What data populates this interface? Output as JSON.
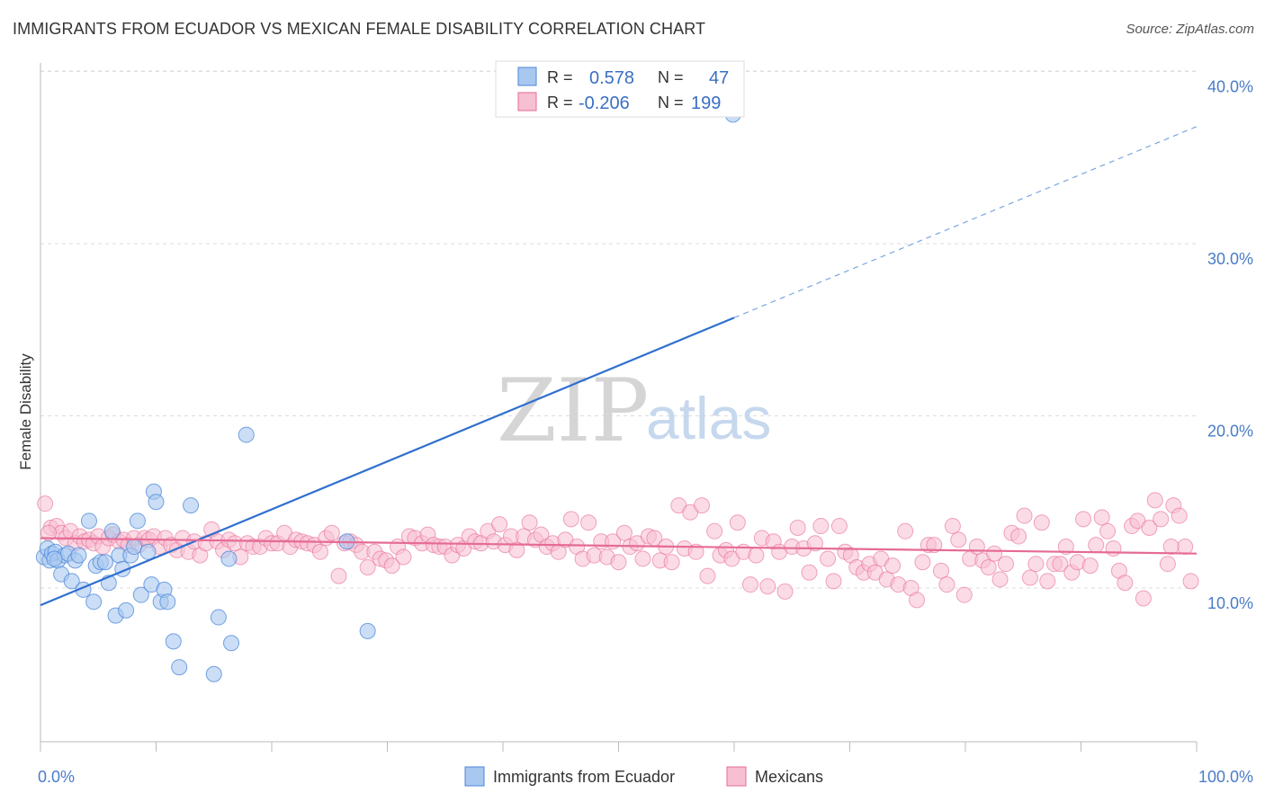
{
  "header": {
    "title": "IMMIGRANTS FROM ECUADOR VS MEXICAN FEMALE DISABILITY CORRELATION CHART",
    "source": "Source: ZipAtlas.com"
  },
  "watermark": {
    "zip": "ZIP",
    "atlas": "atlas"
  },
  "colors": {
    "blue": "#4a86d8",
    "blue_fill": "#a9c8f0",
    "pink": "#e86a95",
    "pink_fill": "#f7c0d2",
    "tick_text": "#4a7cc7"
  },
  "legend": {
    "rows": [
      {
        "r_label": "R =",
        "r_value": "0.578",
        "n_label": "N =",
        "n_value": "47"
      },
      {
        "r_label": "R =",
        "r_value": "-0.206",
        "n_label": "N =",
        "n_value": "199"
      }
    ]
  },
  "chart_data": {
    "type": "scatter",
    "title": "IMMIGRANTS FROM ECUADOR VS MEXICAN FEMALE DISABILITY CORRELATION CHART",
    "xlabel": "",
    "ylabel": "Female Disability",
    "x_tick_labels": [
      "0.0%",
      "100.0%"
    ],
    "y_tick_labels": [
      "10.0%",
      "20.0%",
      "30.0%",
      "40.0%"
    ],
    "xlim": [
      0,
      100
    ],
    "ylim": [
      0,
      42
    ],
    "grid": true,
    "legend_position": "bottom",
    "series": [
      {
        "name": "Immigrants from Ecuador",
        "color": "#4a86d8",
        "r": 0.578,
        "n": 47,
        "trend": {
          "x0": 0,
          "y0": 9.0,
          "x1": 60,
          "y1": 25.7,
          "dashed_to_x": 100,
          "dashed_to_y": 36.8
        },
        "points": [
          [
            0.3,
            11.8
          ],
          [
            0.6,
            12.3
          ],
          [
            0.8,
            11.6
          ],
          [
            1.0,
            12.0
          ],
          [
            1.3,
            12.1
          ],
          [
            1.5,
            11.6
          ],
          [
            1.8,
            10.8
          ],
          [
            2.1,
            11.9
          ],
          [
            2.4,
            12.0
          ],
          [
            2.7,
            10.4
          ],
          [
            3.0,
            11.6
          ],
          [
            3.3,
            11.9
          ],
          [
            3.7,
            9.9
          ],
          [
            4.2,
            13.9
          ],
          [
            4.6,
            9.2
          ],
          [
            4.8,
            11.3
          ],
          [
            5.2,
            11.5
          ],
          [
            5.6,
            11.5
          ],
          [
            5.9,
            10.3
          ],
          [
            6.2,
            13.3
          ],
          [
            6.5,
            8.4
          ],
          [
            6.8,
            11.9
          ],
          [
            7.1,
            11.1
          ],
          [
            7.4,
            8.7
          ],
          [
            7.8,
            11.9
          ],
          [
            8.1,
            12.4
          ],
          [
            8.4,
            13.9
          ],
          [
            8.7,
            9.6
          ],
          [
            9.3,
            12.1
          ],
          [
            9.6,
            10.2
          ],
          [
            9.8,
            15.6
          ],
          [
            10.0,
            15.0
          ],
          [
            10.4,
            9.2
          ],
          [
            10.7,
            9.9
          ],
          [
            11.0,
            9.2
          ],
          [
            11.5,
            6.9
          ],
          [
            12.0,
            5.4
          ],
          [
            13.0,
            14.8
          ],
          [
            15.0,
            5.0
          ],
          [
            15.4,
            8.3
          ],
          [
            16.3,
            11.7
          ],
          [
            16.5,
            6.8
          ],
          [
            17.8,
            18.9
          ],
          [
            26.5,
            12.7
          ],
          [
            28.3,
            7.5
          ],
          [
            59.9,
            37.5
          ],
          [
            1.2,
            11.7
          ]
        ]
      },
      {
        "name": "Mexicans",
        "color": "#e86a95",
        "r": -0.206,
        "n": 199,
        "trend": {
          "x0": 0,
          "y0": 12.9,
          "x1": 100,
          "y1": 12.0
        },
        "points": [
          [
            0.4,
            14.9
          ],
          [
            0.9,
            13.5
          ],
          [
            1.4,
            13.6
          ],
          [
            1.8,
            13.2
          ],
          [
            2.2,
            12.9
          ],
          [
            2.6,
            13.3
          ],
          [
            3.0,
            12.6
          ],
          [
            3.4,
            13.0
          ],
          [
            3.8,
            12.7
          ],
          [
            4.2,
            12.8
          ],
          [
            4.6,
            12.6
          ],
          [
            5.0,
            13.0
          ],
          [
            5.4,
            12.4
          ],
          [
            5.9,
            12.9
          ],
          [
            6.3,
            13.1
          ],
          [
            6.8,
            12.7
          ],
          [
            7.2,
            12.8
          ],
          [
            7.6,
            12.5
          ],
          [
            8.1,
            12.9
          ],
          [
            8.5,
            12.5
          ],
          [
            9.0,
            12.9
          ],
          [
            9.4,
            12.8
          ],
          [
            9.8,
            13.0
          ],
          [
            10.3,
            12.4
          ],
          [
            10.8,
            12.9
          ],
          [
            11.3,
            12.5
          ],
          [
            11.8,
            12.2
          ],
          [
            12.3,
            12.9
          ],
          [
            12.8,
            12.1
          ],
          [
            13.3,
            12.7
          ],
          [
            13.8,
            11.9
          ],
          [
            14.3,
            12.6
          ],
          [
            14.8,
            13.4
          ],
          [
            15.3,
            12.7
          ],
          [
            15.8,
            12.2
          ],
          [
            16.3,
            12.8
          ],
          [
            16.8,
            12.6
          ],
          [
            17.3,
            11.8
          ],
          [
            17.9,
            12.6
          ],
          [
            18.4,
            12.4
          ],
          [
            19.0,
            12.4
          ],
          [
            19.5,
            12.9
          ],
          [
            20.0,
            12.6
          ],
          [
            20.5,
            12.6
          ],
          [
            21.1,
            13.2
          ],
          [
            21.6,
            12.4
          ],
          [
            22.1,
            12.8
          ],
          [
            22.6,
            12.7
          ],
          [
            23.1,
            12.6
          ],
          [
            23.7,
            12.5
          ],
          [
            24.2,
            12.1
          ],
          [
            24.7,
            12.9
          ],
          [
            25.2,
            13.2
          ],
          [
            25.8,
            10.7
          ],
          [
            26.3,
            12.6
          ],
          [
            26.8,
            12.7
          ],
          [
            27.3,
            12.5
          ],
          [
            27.8,
            12.1
          ],
          [
            28.3,
            11.2
          ],
          [
            28.9,
            12.1
          ],
          [
            29.4,
            11.7
          ],
          [
            29.9,
            11.6
          ],
          [
            30.4,
            11.3
          ],
          [
            30.9,
            12.4
          ],
          [
            31.4,
            11.8
          ],
          [
            31.9,
            13.0
          ],
          [
            32.4,
            12.9
          ],
          [
            33.0,
            12.6
          ],
          [
            33.5,
            13.1
          ],
          [
            34.0,
            12.5
          ],
          [
            34.5,
            12.4
          ],
          [
            35.0,
            12.4
          ],
          [
            35.6,
            11.9
          ],
          [
            36.1,
            12.5
          ],
          [
            36.6,
            12.3
          ],
          [
            37.1,
            13.0
          ],
          [
            37.6,
            12.7
          ],
          [
            38.1,
            12.6
          ],
          [
            38.7,
            13.3
          ],
          [
            39.2,
            12.7
          ],
          [
            39.7,
            13.7
          ],
          [
            40.2,
            12.5
          ],
          [
            40.7,
            13.0
          ],
          [
            41.2,
            12.2
          ],
          [
            41.8,
            13.0
          ],
          [
            42.3,
            13.8
          ],
          [
            42.8,
            12.8
          ],
          [
            43.3,
            13.1
          ],
          [
            43.8,
            12.4
          ],
          [
            44.3,
            12.6
          ],
          [
            44.8,
            12.1
          ],
          [
            45.4,
            12.8
          ],
          [
            45.9,
            14.0
          ],
          [
            46.4,
            12.4
          ],
          [
            46.9,
            11.7
          ],
          [
            47.4,
            13.8
          ],
          [
            47.9,
            11.9
          ],
          [
            48.5,
            12.7
          ],
          [
            49.0,
            11.8
          ],
          [
            49.5,
            12.7
          ],
          [
            50.0,
            11.5
          ],
          [
            50.5,
            13.2
          ],
          [
            51.0,
            12.4
          ],
          [
            51.6,
            12.6
          ],
          [
            52.1,
            11.7
          ],
          [
            52.6,
            13.0
          ],
          [
            53.1,
            12.9
          ],
          [
            53.6,
            11.6
          ],
          [
            54.1,
            12.4
          ],
          [
            54.6,
            11.5
          ],
          [
            55.2,
            14.8
          ],
          [
            55.7,
            12.3
          ],
          [
            56.2,
            14.4
          ],
          [
            56.7,
            12.1
          ],
          [
            57.2,
            14.8
          ],
          [
            57.7,
            10.7
          ],
          [
            58.3,
            13.3
          ],
          [
            58.8,
            11.9
          ],
          [
            59.3,
            12.2
          ],
          [
            59.8,
            11.7
          ],
          [
            60.3,
            13.8
          ],
          [
            60.8,
            12.1
          ],
          [
            61.4,
            10.2
          ],
          [
            61.9,
            11.9
          ],
          [
            62.4,
            12.9
          ],
          [
            62.9,
            10.1
          ],
          [
            63.4,
            12.7
          ],
          [
            63.9,
            12.1
          ],
          [
            64.4,
            9.8
          ],
          [
            65.0,
            12.4
          ],
          [
            65.5,
            13.5
          ],
          [
            66.0,
            12.3
          ],
          [
            66.5,
            10.9
          ],
          [
            67.0,
            12.6
          ],
          [
            67.5,
            13.6
          ],
          [
            68.1,
            11.7
          ],
          [
            68.6,
            10.4
          ],
          [
            69.1,
            13.6
          ],
          [
            69.6,
            12.1
          ],
          [
            70.1,
            11.9
          ],
          [
            70.6,
            11.2
          ],
          [
            71.2,
            10.9
          ],
          [
            71.7,
            11.4
          ],
          [
            72.2,
            10.9
          ],
          [
            72.7,
            11.7
          ],
          [
            73.2,
            10.5
          ],
          [
            73.7,
            11.3
          ],
          [
            74.2,
            10.2
          ],
          [
            74.8,
            13.3
          ],
          [
            75.3,
            10.0
          ],
          [
            75.8,
            9.3
          ],
          [
            76.3,
            11.5
          ],
          [
            76.8,
            12.5
          ],
          [
            77.3,
            12.5
          ],
          [
            77.9,
            11.0
          ],
          [
            78.4,
            10.2
          ],
          [
            78.9,
            13.6
          ],
          [
            79.4,
            12.8
          ],
          [
            79.9,
            9.6
          ],
          [
            80.4,
            11.7
          ],
          [
            81.0,
            12.4
          ],
          [
            81.5,
            11.6
          ],
          [
            82.0,
            11.2
          ],
          [
            82.5,
            12.0
          ],
          [
            83.0,
            10.5
          ],
          [
            83.5,
            11.4
          ],
          [
            84.0,
            13.2
          ],
          [
            84.6,
            13.0
          ],
          [
            85.1,
            14.2
          ],
          [
            85.6,
            10.6
          ],
          [
            86.1,
            11.4
          ],
          [
            86.6,
            13.8
          ],
          [
            87.1,
            10.4
          ],
          [
            87.7,
            11.4
          ],
          [
            88.2,
            11.4
          ],
          [
            88.7,
            12.4
          ],
          [
            89.2,
            10.9
          ],
          [
            89.7,
            11.5
          ],
          [
            90.2,
            14.0
          ],
          [
            90.8,
            11.3
          ],
          [
            91.3,
            12.5
          ],
          [
            91.8,
            14.1
          ],
          [
            92.3,
            13.3
          ],
          [
            92.8,
            12.3
          ],
          [
            93.3,
            11.0
          ],
          [
            93.8,
            10.3
          ],
          [
            94.4,
            13.6
          ],
          [
            94.9,
            13.9
          ],
          [
            95.4,
            9.4
          ],
          [
            95.9,
            13.5
          ],
          [
            96.4,
            15.1
          ],
          [
            96.9,
            14.0
          ],
          [
            97.5,
            11.4
          ],
          [
            98.0,
            14.8
          ],
          [
            98.5,
            14.2
          ],
          [
            99.0,
            12.4
          ],
          [
            99.5,
            10.4
          ],
          [
            0.7,
            13.2
          ],
          [
            97.8,
            12.4
          ]
        ]
      }
    ]
  }
}
